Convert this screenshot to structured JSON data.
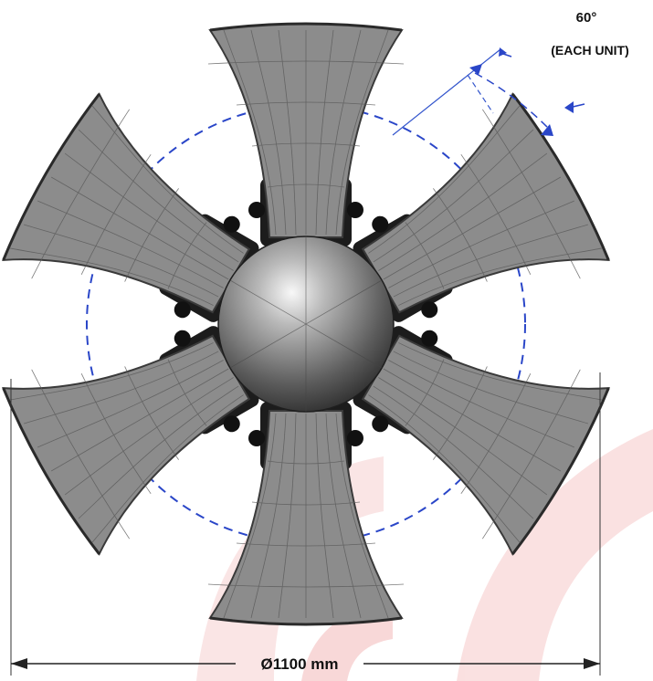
{
  "angle": {
    "value": "60°",
    "note": "(EACH UNIT)"
  },
  "diameter": {
    "label": "Ø1100 mm"
  },
  "horn_count": 6,
  "colors": {
    "horn": "#8c8c8c",
    "horn_dark": "#3a3a3a",
    "dash_circle": "#2a46c8",
    "dimension_line": "#222222",
    "watermark": "#f4c6c6"
  }
}
